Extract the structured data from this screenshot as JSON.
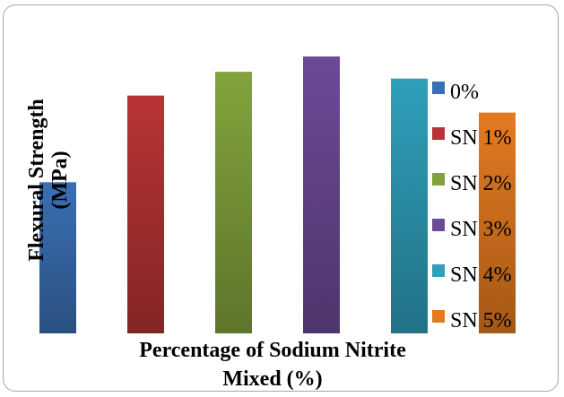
{
  "chart_data": {
    "type": "bar",
    "title": "",
    "xlabel_lines": [
      "Percentage of Sodium Nitrite",
      "Mixed (%)"
    ],
    "ylabel_lines": [
      "Flexural Strength",
      "(MPa)"
    ],
    "categories": [
      "0%",
      "SN 1%",
      "SN 2%",
      "SN 3%",
      "SN 4%",
      "SN 5%"
    ],
    "values": [
      4.45,
      7.0,
      7.7,
      8.15,
      7.5,
      6.5
    ],
    "ylim": [
      0,
      8.6
    ],
    "colors": [
      "#3a6fb3",
      "#b83434",
      "#82a33c",
      "#6c4a96",
      "#2f9fba",
      "#e47a20"
    ],
    "legend_position": "right",
    "grid": false
  }
}
